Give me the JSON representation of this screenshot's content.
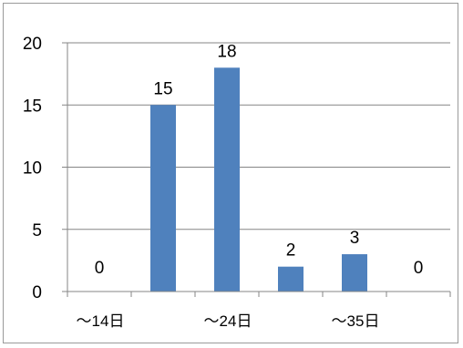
{
  "chart_data": {
    "type": "bar",
    "categories": [
      "〜14日",
      "",
      "〜24日",
      "",
      "〜35日",
      ""
    ],
    "values": [
      0,
      15,
      18,
      2,
      3,
      0
    ],
    "data_labels": [
      "0",
      "15",
      "18",
      "2",
      "3",
      "0"
    ],
    "ylim": [
      0,
      20
    ],
    "yticks": [
      0,
      5,
      10,
      15,
      20
    ],
    "grid": true,
    "legend": "none",
    "bar_color": "#4f81bd",
    "grid_color": "#868686"
  }
}
